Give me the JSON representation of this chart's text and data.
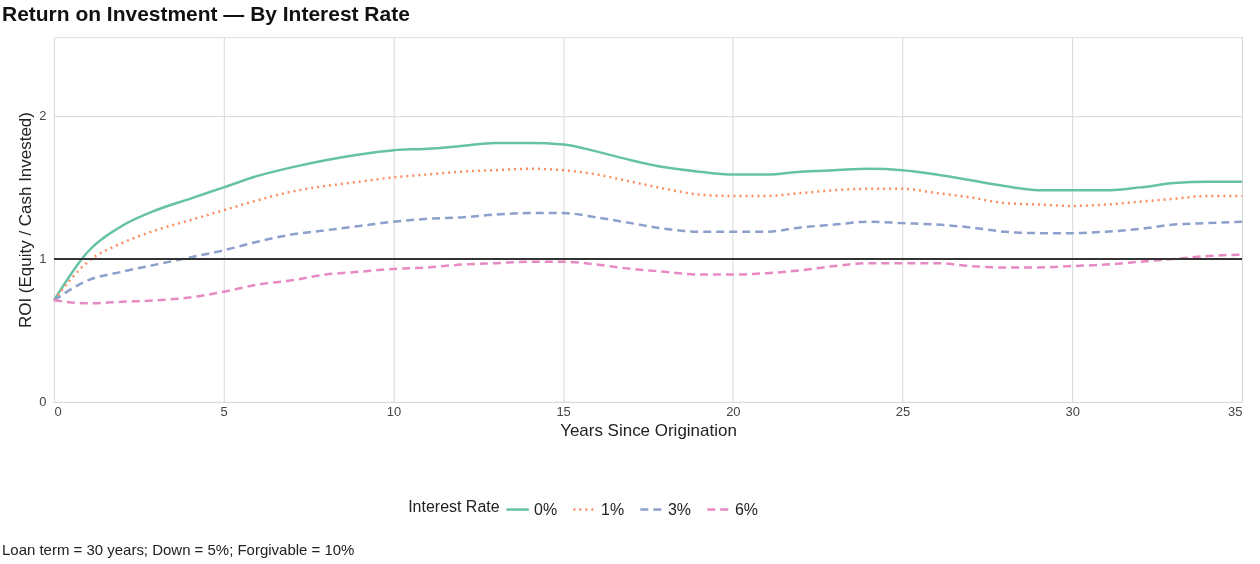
{
  "chart_data": {
    "type": "line",
    "title": "Return on Investment — By Interest Rate",
    "xlabel": "Years Since Origination",
    "ylabel": "ROI (Equity / Cash Invested)",
    "legend_title": "Interest Rate",
    "annotations": [
      "Loan term = 30 years; Down = 5%; Forgivable = 10%"
    ],
    "x": [
      0,
      1,
      2,
      3,
      4,
      5,
      6,
      7,
      8,
      9,
      10,
      11,
      12,
      13,
      14,
      15,
      16,
      17,
      18,
      19,
      20,
      21,
      22,
      23,
      24,
      25,
      26,
      27,
      28,
      29,
      30,
      31,
      32,
      33,
      34,
      35
    ],
    "series": [
      {
        "name": "0%",
        "color": "#66c2a5",
        "line_style": "solid",
        "values": [
          0.71,
          1.05,
          1.23,
          1.34,
          1.42,
          1.5,
          1.58,
          1.64,
          1.69,
          1.73,
          1.76,
          1.77,
          1.79,
          1.81,
          1.81,
          1.8,
          1.75,
          1.69,
          1.64,
          1.61,
          1.59,
          1.59,
          1.61,
          1.62,
          1.63,
          1.62,
          1.59,
          1.55,
          1.51,
          1.48,
          1.48,
          1.48,
          1.5,
          1.53,
          1.54,
          1.54
        ]
      },
      {
        "name": "1%",
        "color": "#fc8d62",
        "line_style": "dotted",
        "values": [
          0.71,
          0.98,
          1.11,
          1.2,
          1.27,
          1.34,
          1.41,
          1.47,
          1.51,
          1.54,
          1.57,
          1.59,
          1.61,
          1.62,
          1.63,
          1.62,
          1.59,
          1.54,
          1.49,
          1.45,
          1.44,
          1.44,
          1.46,
          1.48,
          1.49,
          1.49,
          1.46,
          1.43,
          1.39,
          1.38,
          1.37,
          1.38,
          1.4,
          1.42,
          1.44,
          1.44
        ]
      },
      {
        "name": "3%",
        "color": "#8da0cb",
        "line_style": "dashed",
        "values": [
          0.71,
          0.85,
          0.91,
          0.96,
          1.01,
          1.06,
          1.12,
          1.17,
          1.2,
          1.23,
          1.26,
          1.28,
          1.29,
          1.31,
          1.32,
          1.32,
          1.29,
          1.25,
          1.21,
          1.19,
          1.19,
          1.19,
          1.22,
          1.24,
          1.26,
          1.25,
          1.24,
          1.22,
          1.19,
          1.18,
          1.18,
          1.19,
          1.21,
          1.24,
          1.25,
          1.26
        ]
      },
      {
        "name": "6%",
        "color": "#e78ac3",
        "line_style": "dashed",
        "values": [
          0.71,
          0.69,
          0.7,
          0.71,
          0.73,
          0.77,
          0.82,
          0.85,
          0.89,
          0.91,
          0.93,
          0.94,
          0.96,
          0.97,
          0.98,
          0.98,
          0.96,
          0.93,
          0.91,
          0.89,
          0.89,
          0.9,
          0.92,
          0.95,
          0.97,
          0.97,
          0.97,
          0.95,
          0.94,
          0.94,
          0.95,
          0.96,
          0.98,
          1.0,
          1.02,
          1.03
        ]
      }
    ],
    "xlim": [
      0,
      35
    ],
    "xticks": [
      0,
      5,
      10,
      15,
      20,
      25,
      30,
      35
    ],
    "ylim": [
      0,
      2.55
    ],
    "yticks": [
      0,
      1,
      2
    ],
    "ref_lines": [
      {
        "axis": "y",
        "value": 1,
        "color": "#333333"
      }
    ],
    "grid": true,
    "legend": "bottom"
  }
}
